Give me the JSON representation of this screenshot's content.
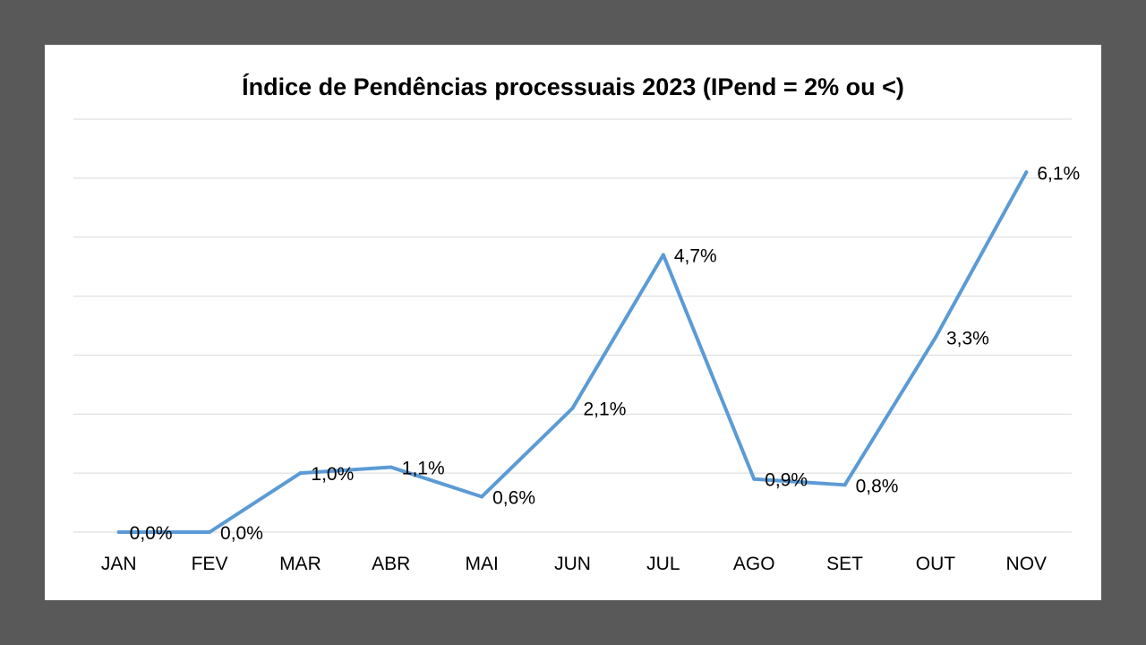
{
  "chart_data": {
    "type": "line",
    "title": "Índice de Pendências processuais 2023 (IPend = 2% ou <)",
    "xlabel": "",
    "ylabel": "",
    "categories": [
      "JAN",
      "FEV",
      "MAR",
      "ABR",
      "MAI",
      "JUN",
      "JUL",
      "AGO",
      "SET",
      "OUT",
      "NOV"
    ],
    "series": [
      {
        "name": "IPend",
        "values": [
          0.0,
          0.0,
          1.0,
          1.1,
          0.6,
          2.1,
          4.7,
          0.9,
          0.8,
          3.3,
          6.1
        ],
        "labels": [
          "0,0%",
          "0,0%",
          "1,0%",
          "1,1%",
          "0,6%",
          "2,1%",
          "4,7%",
          "0,9%",
          "0,8%",
          "3,3%",
          "6,1%"
        ]
      }
    ],
    "ylim": [
      0,
      7
    ],
    "grid": true,
    "line_color": "#5B9BD5"
  }
}
